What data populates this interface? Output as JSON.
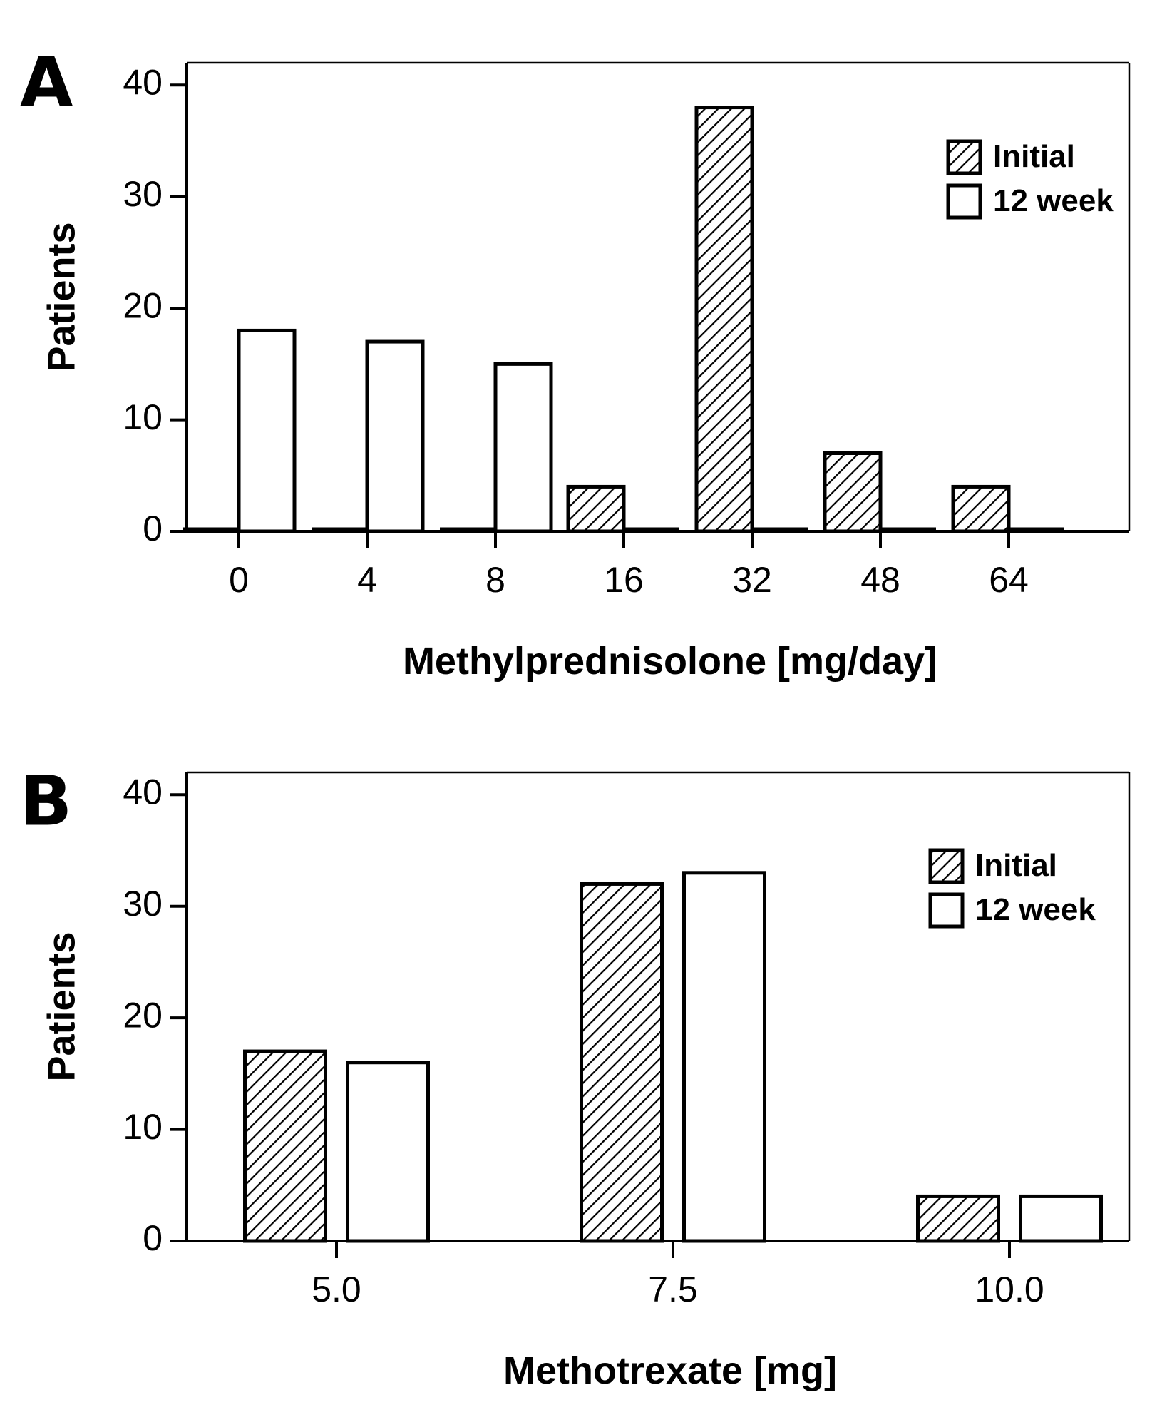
{
  "colors": {
    "ink": "#000000",
    "background": "#ffffff"
  },
  "chart_data": [
    {
      "type": "bar",
      "panel": "A",
      "xlabel": "Methylprednisolone  [mg/day]",
      "ylabel": "Patients",
      "ylim": [
        0,
        42
      ],
      "yticks": [
        0,
        10,
        20,
        30,
        40
      ],
      "categories": [
        "0",
        "4",
        "8",
        "16",
        "32",
        "48",
        "64"
      ],
      "series": [
        {
          "name": "Initial",
          "pattern": "hatched",
          "values": [
            0,
            0,
            0,
            4,
            38,
            7,
            4
          ]
        },
        {
          "name": "12 week",
          "pattern": "open",
          "values": [
            18,
            17,
            15,
            0,
            0,
            0,
            0
          ]
        }
      ],
      "legend": [
        "Initial",
        "12 week"
      ],
      "legend_position": "top-right",
      "grid": false
    },
    {
      "type": "bar",
      "panel": "B",
      "xlabel": "Methotrexate [mg]",
      "ylabel": "Patients",
      "ylim": [
        0,
        42
      ],
      "yticks": [
        0,
        10,
        20,
        30,
        40
      ],
      "categories": [
        "5.0",
        "7.5",
        "10.0"
      ],
      "series": [
        {
          "name": "Initial",
          "pattern": "hatched",
          "values": [
            17,
            32,
            4
          ]
        },
        {
          "name": "12 week",
          "pattern": "open",
          "values": [
            16,
            33,
            4
          ]
        }
      ],
      "legend": [
        "Initial",
        "12 week"
      ],
      "legend_position": "top-right",
      "grid": false
    }
  ]
}
